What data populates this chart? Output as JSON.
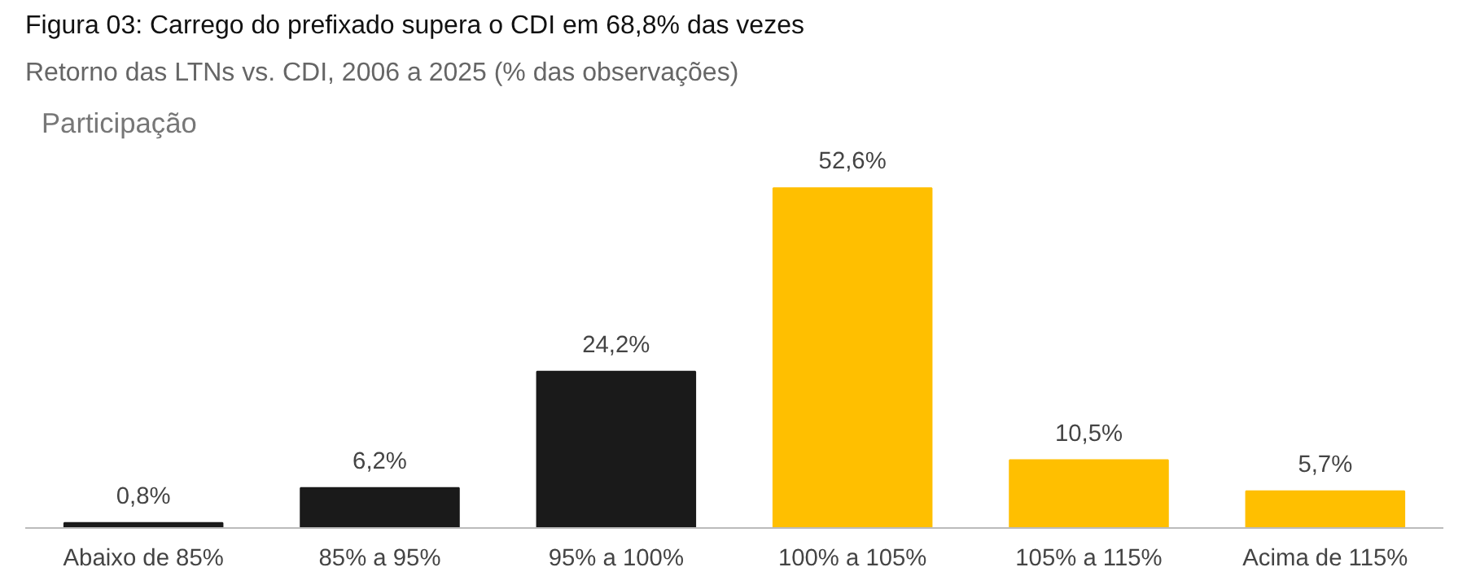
{
  "chart_data": {
    "type": "bar",
    "title": "Figura 03: Carrego do prefixado supera o CDI em 68,8% das vezes",
    "subtitle": "Retorno das LTNs vs. CDI, 2006 a 2025 (% das observações)",
    "ylabel": "Participação",
    "categories": [
      "Abaixo de 85%",
      "85% a 95%",
      "95% a 100%",
      "100% a 105%",
      "105% a 115%",
      "Acima de 115%"
    ],
    "values": [
      0.8,
      6.2,
      24.2,
      52.6,
      10.5,
      5.7
    ],
    "colors": [
      "#1a1a1a",
      "#1a1a1a",
      "#1a1a1a",
      "#ffbf00",
      "#ffbf00",
      "#ffbf00"
    ],
    "value_labels": [
      "0,8%",
      "6,2%",
      "24,2%",
      "52,6%",
      "10,5%",
      "5,7%"
    ],
    "grid": false
  }
}
